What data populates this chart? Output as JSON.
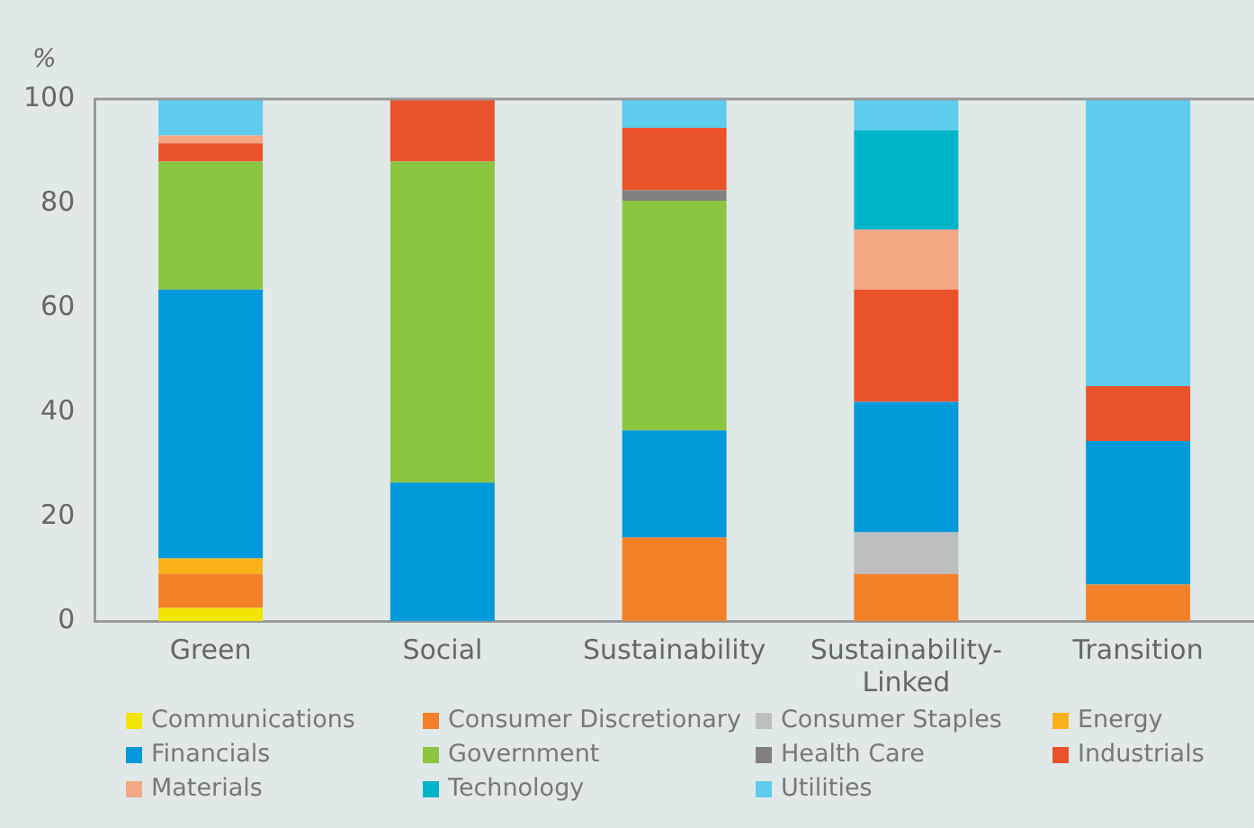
{
  "chart_data": {
    "type": "bar",
    "stacked": true,
    "ylabel": "%",
    "categories": [
      "Green",
      "Social",
      "Sustainability",
      "Sustainability-Linked",
      "Transition"
    ],
    "ylim": [
      0,
      100
    ],
    "yticks": [
      0,
      20,
      40,
      60,
      80,
      100
    ],
    "grid": false,
    "legend": "bottom",
    "series": [
      {
        "name": "Communications",
        "color": "#f2e500",
        "values": [
          2.5,
          0,
          0,
          0,
          0
        ]
      },
      {
        "name": "Consumer Discretionary",
        "color": "#f28129",
        "values": [
          6.5,
          0,
          16,
          9,
          7
        ]
      },
      {
        "name": "Consumer Staples",
        "color": "#bdbec0",
        "values": [
          0,
          0,
          0,
          8,
          0
        ]
      },
      {
        "name": "Energy",
        "color": "#fbb21a",
        "values": [
          3,
          0,
          0,
          0,
          0
        ]
      },
      {
        "name": "Financials",
        "color": "#0099da",
        "values": [
          51.5,
          26.5,
          20.5,
          25,
          27.5
        ]
      },
      {
        "name": "Government",
        "color": "#8cc540",
        "values": [
          24.5,
          61.5,
          44,
          0,
          0
        ]
      },
      {
        "name": "Health Care",
        "color": "#808080",
        "values": [
          0,
          0,
          2,
          0,
          0
        ]
      },
      {
        "name": "Industrials",
        "color": "#e9522b",
        "values": [
          3.5,
          12,
          12,
          21.5,
          10.5
        ]
      },
      {
        "name": "Materials",
        "color": "#f4a885",
        "values": [
          1.5,
          0,
          0,
          11.5,
          0
        ]
      },
      {
        "name": "Technology",
        "color": "#00b4c8",
        "values": [
          0,
          0,
          0,
          19,
          0
        ]
      },
      {
        "name": "Utilities",
        "color": "#5dcced",
        "values": [
          7,
          0,
          5.5,
          6,
          55
        ]
      }
    ]
  }
}
